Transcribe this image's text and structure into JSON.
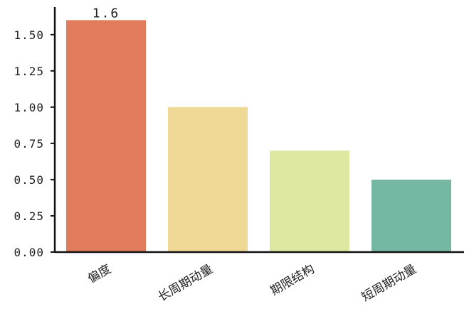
{
  "chart_data": {
    "type": "bar",
    "categories": [
      "偏度",
      "长周期动量",
      "期限结构",
      "短周期动量"
    ],
    "values": [
      1.6,
      1.0,
      0.7,
      0.5
    ],
    "colors": [
      "#e07b5b",
      "#f0d896",
      "#dfe8a1",
      "#76b7a3"
    ],
    "data_labels": [
      "1.6",
      "",
      "",
      ""
    ],
    "y_ticks": [
      "0.00",
      "0.25",
      "0.50",
      "0.75",
      "1.00",
      "1.25",
      "1.50"
    ],
    "ylim": [
      0,
      1.69
    ],
    "title": "",
    "xlabel": "",
    "ylabel": "",
    "grid": false,
    "legend": "none"
  }
}
